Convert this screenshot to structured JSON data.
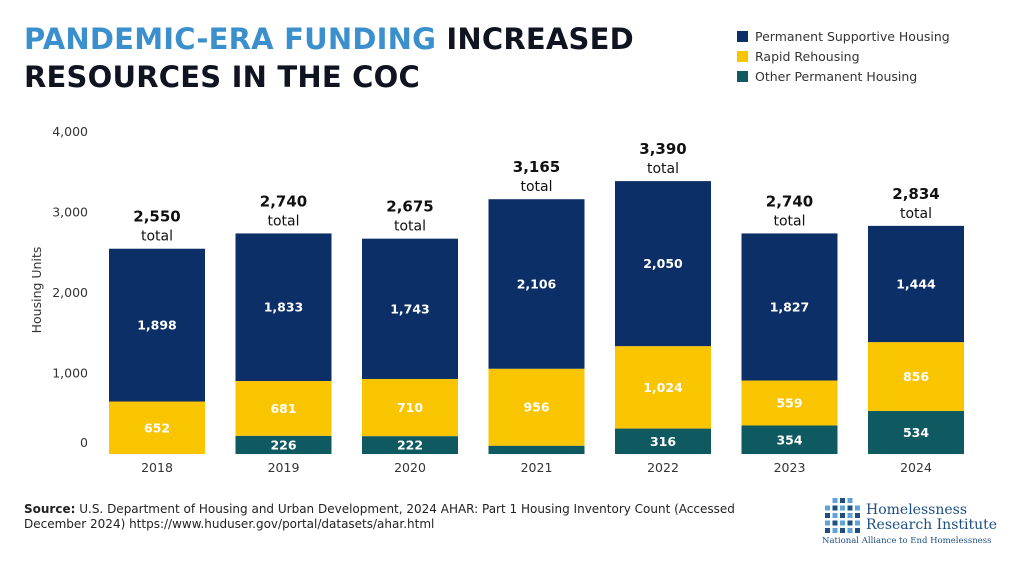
{
  "title": {
    "highlight": "PANDEMIC-ERA FUNDING",
    "rest_line1": "INCREASED",
    "line2": "RESOURCES IN THE COC"
  },
  "colors": {
    "psh": "#0b2f66",
    "rrh": "#f9c400",
    "oph": "#0f5a61",
    "title_highlight": "#3a8fcc"
  },
  "legend": [
    {
      "label": "Permanent Supportive Housing",
      "color": "#0b2f66"
    },
    {
      "label": "Rapid Rehousing",
      "color": "#f9c400"
    },
    {
      "label": "Other Permanent Housing",
      "color": "#0f5a61"
    }
  ],
  "chart_data": {
    "type": "bar",
    "stacked": true,
    "categories": [
      "2018",
      "2019",
      "2020",
      "2021",
      "2022",
      "2023",
      "2024"
    ],
    "series": [
      {
        "name": "Other Permanent Housing",
        "values": [
          0,
          226,
          222,
          103,
          316,
          354,
          534
        ],
        "labels": [
          "",
          "226",
          "222",
          "",
          "316",
          "354",
          "534"
        ]
      },
      {
        "name": "Rapid Rehousing",
        "values": [
          652,
          681,
          710,
          956,
          1024,
          559,
          856
        ],
        "labels": [
          "652",
          "681",
          "710",
          "956",
          "1,024",
          "559",
          "856"
        ]
      },
      {
        "name": "Permanent Supportive Housing",
        "values": [
          1898,
          1833,
          1743,
          2106,
          2050,
          1827,
          1444
        ],
        "labels": [
          "1,898",
          "1,833",
          "1,743",
          "2,106",
          "2,050",
          "1,827",
          "1,444"
        ]
      }
    ],
    "totals": [
      "2,550",
      "2,740",
      "2,675",
      "3,165",
      "3,390",
      "2,740",
      "2,834"
    ],
    "total_word": "total",
    "ylabel": "Housing Units",
    "ylim": [
      0,
      4000
    ],
    "yticks": [
      0,
      1000,
      2000,
      3000,
      4000
    ],
    "ytick_labels": [
      "0",
      "1,000",
      "2,000",
      "3,000",
      "4,000"
    ],
    "grid": false,
    "legend_position": "top-right"
  },
  "source": {
    "label": "Source:",
    "text": " U.S. Department of Housing and Urban Development, 2024 AHAR: Part 1 Housing Inventory Count (Accessed December 2024) https://www.huduser.gov/portal/datasets/ahar.html"
  },
  "logo": {
    "line1": "Homelessness",
    "line2": "Research Institute",
    "tagline": "National Alliance to End Homelessness"
  }
}
